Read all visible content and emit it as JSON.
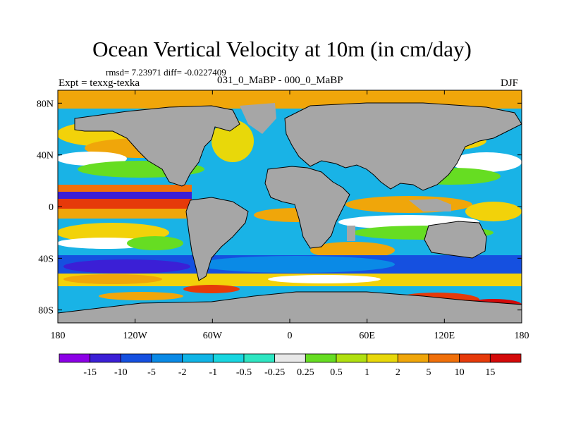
{
  "title": "Ocean Vertical Velocity at 10m (in cm/day)",
  "stats": "rmsd= 7.23971 diff= -0.0227409",
  "experiment": "Expt = texxg-texka",
  "subtitle": "031_0_MaBP - 000_0_MaBP",
  "season": "DJF",
  "map": {
    "lat_labels": [
      "80N",
      "40N",
      "0",
      "40S",
      "80S"
    ],
    "lat_values": [
      80,
      40,
      0,
      -40,
      -80
    ],
    "lon_labels": [
      "180",
      "120W",
      "60W",
      "0",
      "60E",
      "120E",
      "180"
    ],
    "lon_values": [
      -180,
      -120,
      -60,
      0,
      60,
      120,
      180
    ],
    "land_color": "#a6a6a6"
  },
  "colorbar": {
    "levels": [
      "-15",
      "-10",
      "-5",
      "-2",
      "-1",
      "-0.5",
      "-0.25",
      "0.25",
      "0.5",
      "1",
      "2",
      "5",
      "10",
      "15"
    ],
    "colors": [
      "#8c00e6",
      "#3b1fd6",
      "#1550e0",
      "#0a8ae6",
      "#10b4e6",
      "#18d6e0",
      "#2ee6c2",
      "#e8e8e8",
      "#66dd22",
      "#b0e010",
      "#e8d80a",
      "#f0a60a",
      "#f0700a",
      "#e63a0a",
      "#d40a0a"
    ]
  }
}
